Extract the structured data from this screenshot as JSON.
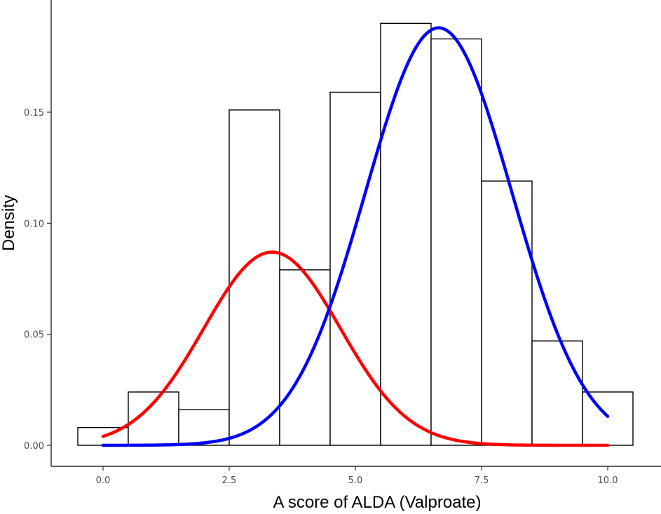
{
  "chart_data": {
    "type": "bar",
    "subtype": "histogram-with-density-curves",
    "xlabel": "A score of ALDA (Valproate)",
    "ylabel": "Density",
    "xlim": [
      -0.5,
      10.5
    ],
    "ylim": [
      0,
      0.19
    ],
    "grid": false,
    "x_ticks": [
      0.0,
      2.5,
      5.0,
      7.5,
      10.0
    ],
    "x_tick_labels": [
      "0.0",
      "2.5",
      "5.0",
      "7.5",
      "10.0"
    ],
    "y_ticks": [
      0.0,
      0.05,
      0.1,
      0.15
    ],
    "y_tick_labels": [
      "0.00",
      "0.05",
      "0.10",
      "0.15"
    ],
    "bins": [
      {
        "x0": -0.5,
        "x1": 0.5,
        "density": 0.008
      },
      {
        "x0": 0.5,
        "x1": 1.5,
        "density": 0.024
      },
      {
        "x0": 1.5,
        "x1": 2.5,
        "density": 0.016
      },
      {
        "x0": 2.5,
        "x1": 3.5,
        "density": 0.151
      },
      {
        "x0": 3.5,
        "x1": 4.5,
        "density": 0.079
      },
      {
        "x0": 4.5,
        "x1": 5.5,
        "density": 0.159
      },
      {
        "x0": 5.5,
        "x1": 6.5,
        "density": 0.19
      },
      {
        "x0": 6.5,
        "x1": 7.5,
        "density": 0.183
      },
      {
        "x0": 7.5,
        "x1": 8.5,
        "density": 0.119
      },
      {
        "x0": 8.5,
        "x1": 9.5,
        "density": 0.047
      },
      {
        "x0": 9.5,
        "x1": 10.5,
        "density": 0.024
      }
    ],
    "curves": [
      {
        "color": "#ff0000",
        "x_range": [
          0,
          10
        ],
        "peak_x": 3.35,
        "peak_density": 0.087,
        "sd": 1.35
      },
      {
        "color": "#0000ff",
        "x_range": [
          0,
          10
        ],
        "peak_x": 6.65,
        "peak_density": 0.188,
        "sd": 1.45
      }
    ]
  }
}
